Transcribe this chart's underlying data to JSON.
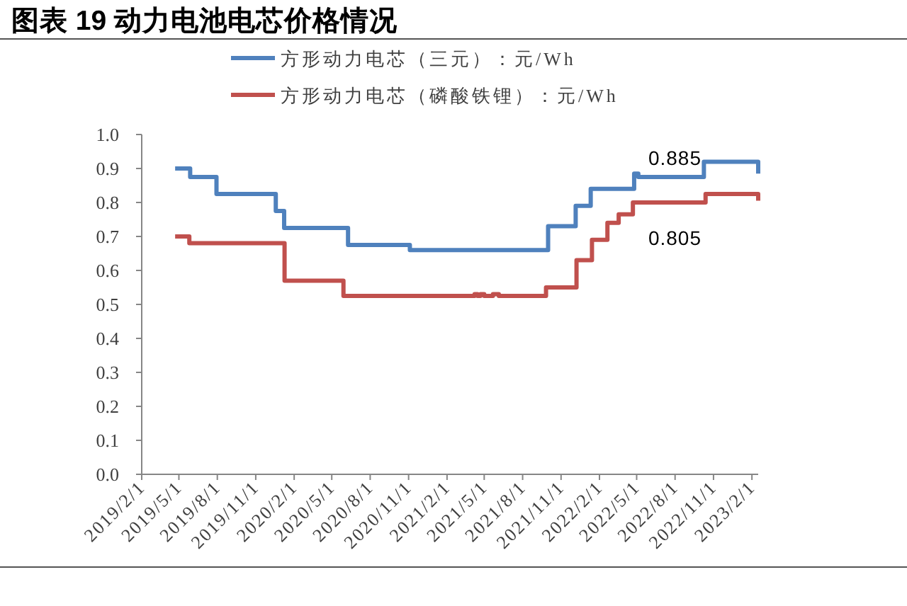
{
  "chart_data": {
    "type": "step",
    "title": "图表 19 动力电池电芯价格情况",
    "series": [
      {
        "name": "方形动力电芯（三元）：元/Wh",
        "color": "#4f81bd",
        "x": [
          "2019-04-22",
          "2019-05-28",
          "2019-07-30",
          "2019-12-19",
          "2020-01-08",
          "2020-06-09",
          "2020-11-04",
          "2021-10-01",
          "2021-12-06",
          "2022-01-11",
          "2022-04-25",
          "2022-05-05",
          "2022-10-09",
          "2023-02-16"
        ],
        "values": [
          0.9,
          0.875,
          0.825,
          0.775,
          0.725,
          0.675,
          0.66,
          0.73,
          0.79,
          0.84,
          0.885,
          0.875,
          0.92,
          0.885
        ]
      },
      {
        "name": "方形动力电芯（磷酸铁锂）：元/Wh",
        "color": "#c0504d",
        "x": [
          "2019-04-22",
          "2019-05-26",
          "2020-01-09",
          "2020-05-29",
          "2021-04-08",
          "2021-04-15",
          "2021-04-22",
          "2021-05-01",
          "2021-05-22",
          "2021-06-05",
          "2021-09-26",
          "2021-12-08",
          "2022-01-14",
          "2022-02-20",
          "2022-03-19",
          "2022-04-22",
          "2022-10-13",
          "2023-02-16"
        ],
        "values": [
          0.7,
          0.68,
          0.57,
          0.525,
          0.53,
          0.525,
          0.53,
          0.525,
          0.53,
          0.525,
          0.55,
          0.63,
          0.69,
          0.74,
          0.765,
          0.8,
          0.825,
          0.805
        ]
      }
    ],
    "xlim": [
      "2019-02-01",
      "2023-02-16"
    ],
    "xticks": [
      {
        "value": "2019-02-01",
        "label": "2019/2/1"
      },
      {
        "value": "2019-05-01",
        "label": "2019/5/1"
      },
      {
        "value": "2019-08-01",
        "label": "2019/8/1"
      },
      {
        "value": "2019-11-01",
        "label": "2019/11/1"
      },
      {
        "value": "2020-02-01",
        "label": "2020/2/1"
      },
      {
        "value": "2020-05-01",
        "label": "2020/5/1"
      },
      {
        "value": "2020-08-01",
        "label": "2020/8/1"
      },
      {
        "value": "2020-11-01",
        "label": "2020/11/1"
      },
      {
        "value": "2021-02-01",
        "label": "2021/2/1"
      },
      {
        "value": "2021-05-01",
        "label": "2021/5/1"
      },
      {
        "value": "2021-08-01",
        "label": "2021/8/1"
      },
      {
        "value": "2021-11-01",
        "label": "2021/11/1"
      },
      {
        "value": "2022-02-01",
        "label": "2022/2/1"
      },
      {
        "value": "2022-05-01",
        "label": "2022/5/1"
      },
      {
        "value": "2022-08-01",
        "label": "2022/8/1"
      },
      {
        "value": "2022-11-01",
        "label": "2022/11/1"
      },
      {
        "value": "2023-02-01",
        "label": "2023/2/1"
      }
    ],
    "ylim": [
      0,
      1
    ],
    "yticks": [
      {
        "value": 0,
        "label": "0.0"
      },
      0.1,
      0.2,
      0.3,
      0.4,
      0.5,
      0.6,
      0.7,
      0.8,
      0.9,
      {
        "value": 1,
        "label": "1.0"
      }
    ],
    "annotations": [
      "0.885",
      "0.805"
    ],
    "legend": "top"
  }
}
